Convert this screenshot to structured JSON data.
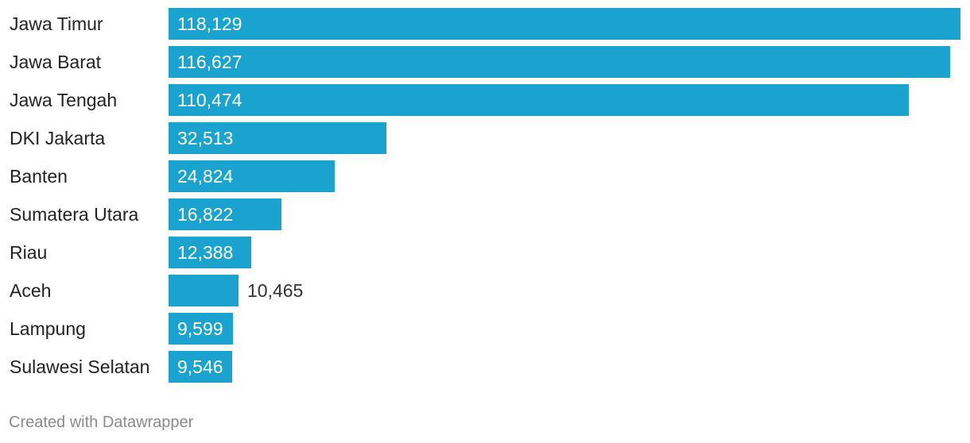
{
  "chart_data": {
    "type": "bar",
    "orientation": "horizontal",
    "categories": [
      "Jawa Timur",
      "Jawa Barat",
      "Jawa Tengah",
      "DKI Jakarta",
      "Banten",
      "Sumatera Utara",
      "Riau",
      "Aceh",
      "Lampung",
      "Sulawesi Selatan"
    ],
    "values": [
      118129,
      116627,
      110474,
      32513,
      24824,
      16822,
      12388,
      10465,
      9599,
      9546
    ],
    "value_labels": [
      "118,129",
      "116,627",
      "110,474",
      "32,513",
      "24,824",
      "16,822",
      "12,388",
      "10,465",
      "9,599",
      "9,546"
    ],
    "bar_color": "#1aa3cf",
    "xlim": [
      0,
      118129
    ],
    "grid": false,
    "legend": "none"
  },
  "footer": {
    "credit": "Created with Datawrapper"
  }
}
